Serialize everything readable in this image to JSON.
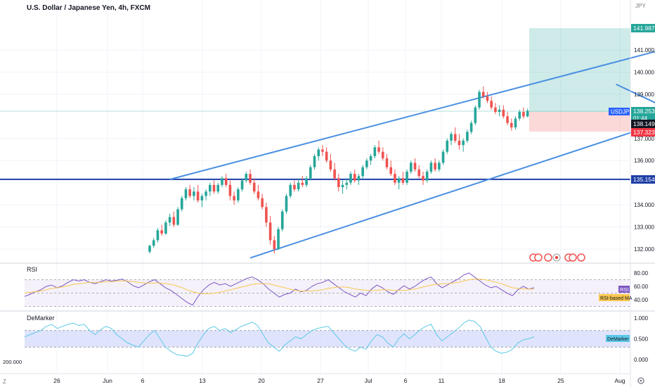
{
  "header": {
    "symbol_title": "U.S. Dollar / Japanese Yen, 4h, FXCM"
  },
  "price_axis": {
    "currency": "JPY",
    "ticks": [
      "141.000",
      "140.000",
      "139.000",
      "137.000",
      "136.000",
      "134.000",
      "133.000",
      "132.000"
    ],
    "labels": {
      "target": {
        "text": "141.987",
        "bg": "#26a69a"
      },
      "symbol": {
        "text": "USDJPY",
        "bg": "#2962ff"
      },
      "last_price": {
        "text": "138.253",
        "bg": "#26a69a"
      },
      "countdown": {
        "text": "01:44",
        "bg": "#26a69a"
      },
      "entry": {
        "text": "138.149",
        "bg": "#131722"
      },
      "stop": {
        "text": "137.323",
        "bg": "#f23645"
      },
      "hline": {
        "text": "135.154",
        "bg": "#1e3fa6"
      }
    }
  },
  "time_axis": {
    "labels": [
      "26",
      "Jun",
      "6",
      "13",
      "20",
      "27",
      "Jul",
      "6",
      "11",
      "18",
      "25",
      "Aug"
    ]
  },
  "rsi_pane": {
    "title": "RSI",
    "ticks": [
      "80.00",
      "60.00",
      "40.00"
    ],
    "value_label": "RSI",
    "ma_label": "RSI-based MA"
  },
  "demarker_pane": {
    "title": "DeMarker",
    "ticks": [
      "1.000",
      "0.500",
      "0.000"
    ],
    "value_label": "DeMarker",
    "left_value": "200.000"
  },
  "footer": {
    "timezone_button": "Z"
  },
  "colors": {
    "up": "#26a69a",
    "down": "#ef5350",
    "channel": "#4a90e2",
    "hline": "#1e3fa6",
    "rsi": "#7e57c2",
    "rsi_ma": "#f9c74f",
    "demarker": "#5dc8e8",
    "band_fill": "#ede7f6"
  },
  "chart_data": {
    "type": "candlestick",
    "symbol": "USDJPY",
    "interval": "4h",
    "y_range": [
      131.5,
      142.5
    ],
    "horizontal_line": 135.154,
    "position": {
      "entry": 138.149,
      "target": 141.987,
      "stop": 137.323
    },
    "last_price": 138.253,
    "candles": [
      [
        131.88,
        132.2,
        131.8,
        132.15
      ],
      [
        132.15,
        132.5,
        132.05,
        132.4
      ],
      [
        132.4,
        132.95,
        132.3,
        132.85
      ],
      [
        132.85,
        133.1,
        132.6,
        132.7
      ],
      [
        132.7,
        133.3,
        132.65,
        133.2
      ],
      [
        133.2,
        133.6,
        133.05,
        133.45
      ],
      [
        133.45,
        133.7,
        133.0,
        133.1
      ],
      [
        133.1,
        133.9,
        133.05,
        133.8
      ],
      [
        133.8,
        134.4,
        133.7,
        134.3
      ],
      [
        134.3,
        134.8,
        134.2,
        134.7
      ],
      [
        134.7,
        134.9,
        134.3,
        134.4
      ],
      [
        134.4,
        134.8,
        134.2,
        134.6
      ],
      [
        134.6,
        134.9,
        134.1,
        134.2
      ],
      [
        134.2,
        134.5,
        133.9,
        134.4
      ],
      [
        134.4,
        134.7,
        134.2,
        134.6
      ],
      [
        134.6,
        135.0,
        134.4,
        134.9
      ],
      [
        134.9,
        135.1,
        134.5,
        134.6
      ],
      [
        134.6,
        135.0,
        134.5,
        134.9
      ],
      [
        134.9,
        135.3,
        134.8,
        135.2
      ],
      [
        135.2,
        135.4,
        134.8,
        134.9
      ],
      [
        134.9,
        135.1,
        134.2,
        134.4
      ],
      [
        134.4,
        134.6,
        134.0,
        134.2
      ],
      [
        134.2,
        134.8,
        134.1,
        134.7
      ],
      [
        134.7,
        135.2,
        134.6,
        135.1
      ],
      [
        135.1,
        135.5,
        135.0,
        135.4
      ],
      [
        135.4,
        135.6,
        134.9,
        135.0
      ],
      [
        135.0,
        135.2,
        134.5,
        134.6
      ],
      [
        134.6,
        134.9,
        134.2,
        134.3
      ],
      [
        134.3,
        134.5,
        133.8,
        133.9
      ],
      [
        133.9,
        134.1,
        133.0,
        133.2
      ],
      [
        133.2,
        133.5,
        132.2,
        132.4
      ],
      [
        132.4,
        132.6,
        131.8,
        132.0
      ],
      [
        132.0,
        133.0,
        131.95,
        132.9
      ],
      [
        132.9,
        133.8,
        132.8,
        133.7
      ],
      [
        133.7,
        134.5,
        133.6,
        134.4
      ],
      [
        134.4,
        135.0,
        134.3,
        134.9
      ],
      [
        134.9,
        135.1,
        134.6,
        134.7
      ],
      [
        134.7,
        135.2,
        134.6,
        135.0
      ],
      [
        135.0,
        135.3,
        134.8,
        134.9
      ],
      [
        134.9,
        135.3,
        134.8,
        135.2
      ],
      [
        135.2,
        135.8,
        135.1,
        135.7
      ],
      [
        135.7,
        136.3,
        135.6,
        136.2
      ],
      [
        136.2,
        136.6,
        136.0,
        136.5
      ],
      [
        136.5,
        136.7,
        136.2,
        136.4
      ],
      [
        136.4,
        136.6,
        135.9,
        136.0
      ],
      [
        136.0,
        136.3,
        135.5,
        135.6
      ],
      [
        135.6,
        135.9,
        135.1,
        135.2
      ],
      [
        135.2,
        135.4,
        134.6,
        134.8
      ],
      [
        134.8,
        135.1,
        134.5,
        134.9
      ],
      [
        134.9,
        135.2,
        134.7,
        135.0
      ],
      [
        135.0,
        135.5,
        134.9,
        135.4
      ],
      [
        135.4,
        135.6,
        135.0,
        135.1
      ],
      [
        135.1,
        135.4,
        134.9,
        135.3
      ],
      [
        135.3,
        135.8,
        135.2,
        135.7
      ],
      [
        135.7,
        136.1,
        135.6,
        136.0
      ],
      [
        136.0,
        136.3,
        135.8,
        136.2
      ],
      [
        136.2,
        136.7,
        136.1,
        136.6
      ],
      [
        136.6,
        136.9,
        136.3,
        136.4
      ],
      [
        136.4,
        136.6,
        136.0,
        136.1
      ],
      [
        136.1,
        136.3,
        135.6,
        135.7
      ],
      [
        135.7,
        136.0,
        135.3,
        135.4
      ],
      [
        135.4,
        135.6,
        134.9,
        135.0
      ],
      [
        135.0,
        135.3,
        134.7,
        135.2
      ],
      [
        135.2,
        135.5,
        134.9,
        135.0
      ],
      [
        135.0,
        135.6,
        134.9,
        135.5
      ],
      [
        135.5,
        136.0,
        135.4,
        135.9
      ],
      [
        135.9,
        136.1,
        135.5,
        135.6
      ],
      [
        135.6,
        135.8,
        135.2,
        135.3
      ],
      [
        135.3,
        135.5,
        134.9,
        135.1
      ],
      [
        135.1,
        135.6,
        135.0,
        135.5
      ],
      [
        135.5,
        136.0,
        135.4,
        135.9
      ],
      [
        135.9,
        136.1,
        135.5,
        135.6
      ],
      [
        135.6,
        136.0,
        135.5,
        135.9
      ],
      [
        135.9,
        136.5,
        135.8,
        136.4
      ],
      [
        136.4,
        137.0,
        136.3,
        136.9
      ],
      [
        136.9,
        137.3,
        136.7,
        137.2
      ],
      [
        137.2,
        137.5,
        136.8,
        136.9
      ],
      [
        136.9,
        137.2,
        136.5,
        136.7
      ],
      [
        136.7,
        137.0,
        136.4,
        136.9
      ],
      [
        136.9,
        137.4,
        136.8,
        137.3
      ],
      [
        137.3,
        137.8,
        137.2,
        137.7
      ],
      [
        137.7,
        138.5,
        137.6,
        138.4
      ],
      [
        138.4,
        139.2,
        138.3,
        139.1
      ],
      [
        139.1,
        139.35,
        138.8,
        138.9
      ],
      [
        138.9,
        139.1,
        138.6,
        138.7
      ],
      [
        138.7,
        138.9,
        138.3,
        138.4
      ],
      [
        138.4,
        138.6,
        138.1,
        138.2
      ],
      [
        138.2,
        138.5,
        138.0,
        138.3
      ],
      [
        138.3,
        138.5,
        137.9,
        138.0
      ],
      [
        138.0,
        138.2,
        137.6,
        137.7
      ],
      [
        137.7,
        137.9,
        137.35,
        137.5
      ],
      [
        137.5,
        138.0,
        137.4,
        137.9
      ],
      [
        137.9,
        138.3,
        137.8,
        138.2
      ],
      [
        138.2,
        138.4,
        137.9,
        138.0
      ],
      [
        138.0,
        138.35,
        137.95,
        138.25
      ]
    ],
    "channel_lines": [
      {
        "name": "upper",
        "points": [
          [
            5,
            135.15
          ],
          [
            144,
            141.8
          ]
        ]
      },
      {
        "name": "lower",
        "points": [
          [
            25,
            131.6
          ],
          [
            147,
            138.9
          ]
        ]
      },
      {
        "name": "flag",
        "points": [
          [
            116,
            139.45
          ],
          [
            137,
            137.65
          ]
        ]
      }
    ],
    "rsi": {
      "range": [
        10,
        100
      ],
      "upper": 70,
      "middle": 50,
      "lower": 30,
      "values": [
        45,
        48,
        52,
        55,
        60,
        62,
        58,
        61,
        66,
        70,
        68,
        70,
        66,
        64,
        67,
        70,
        68,
        69,
        71,
        67,
        61,
        58,
        62,
        67,
        70,
        64,
        58,
        54,
        48,
        42,
        36,
        32,
        45,
        55,
        62,
        66,
        62,
        64,
        60,
        64,
        68,
        72,
        74,
        70,
        64,
        56,
        50,
        44,
        48,
        50,
        56,
        52,
        54,
        60,
        64,
        66,
        70,
        64,
        58,
        52,
        48,
        44,
        50,
        46,
        56,
        62,
        58,
        52,
        48,
        55,
        61,
        56,
        60,
        66,
        71,
        74,
        64,
        58,
        62,
        67,
        71,
        77,
        80,
        74,
        68,
        62,
        58,
        60,
        55,
        50,
        46,
        55,
        60,
        56,
        58
      ]
    },
    "rsi_ma": {
      "values": [
        50,
        51,
        52,
        53,
        55,
        57,
        58,
        59,
        61,
        63,
        64,
        65,
        66,
        66,
        66,
        67,
        67,
        68,
        68,
        68,
        67,
        66,
        65,
        65,
        65,
        65,
        64,
        63,
        61,
        58,
        55,
        52,
        50,
        49,
        49,
        50,
        51,
        53,
        55,
        57,
        59,
        61,
        63,
        64,
        64,
        64,
        62,
        60,
        58,
        56,
        54,
        53,
        53,
        53,
        54,
        55,
        57,
        58,
        59,
        59,
        58,
        56,
        55,
        54,
        54,
        54,
        55,
        55,
        54,
        54,
        54,
        55,
        56,
        58,
        60,
        62,
        63,
        64,
        64,
        65,
        66,
        68,
        70,
        71,
        71,
        70,
        68,
        66,
        64,
        61,
        58,
        57,
        56,
        56,
        56
      ]
    },
    "demarker": {
      "range": [
        -0.1,
        1.1
      ],
      "upper": 0.7,
      "lower": 0.3,
      "values": [
        0.55,
        0.6,
        0.65,
        0.7,
        0.8,
        0.85,
        0.75,
        0.8,
        0.85,
        0.88,
        0.82,
        0.85,
        0.7,
        0.6,
        0.72,
        0.8,
        0.75,
        0.6,
        0.5,
        0.4,
        0.35,
        0.3,
        0.45,
        0.6,
        0.7,
        0.5,
        0.3,
        0.2,
        0.12,
        0.1,
        0.08,
        0.15,
        0.4,
        0.6,
        0.75,
        0.8,
        0.7,
        0.75,
        0.65,
        0.72,
        0.8,
        0.85,
        0.9,
        0.82,
        0.6,
        0.4,
        0.3,
        0.2,
        0.35,
        0.45,
        0.55,
        0.5,
        0.6,
        0.7,
        0.75,
        0.78,
        0.8,
        0.65,
        0.5,
        0.35,
        0.25,
        0.2,
        0.3,
        0.25,
        0.45,
        0.6,
        0.55,
        0.4,
        0.3,
        0.5,
        0.62,
        0.5,
        0.6,
        0.72,
        0.8,
        0.85,
        0.6,
        0.45,
        0.55,
        0.65,
        0.75,
        0.88,
        0.95,
        0.92,
        0.8,
        0.55,
        0.3,
        0.2,
        0.15,
        0.18,
        0.25,
        0.4,
        0.48,
        0.5,
        0.55
      ]
    }
  }
}
